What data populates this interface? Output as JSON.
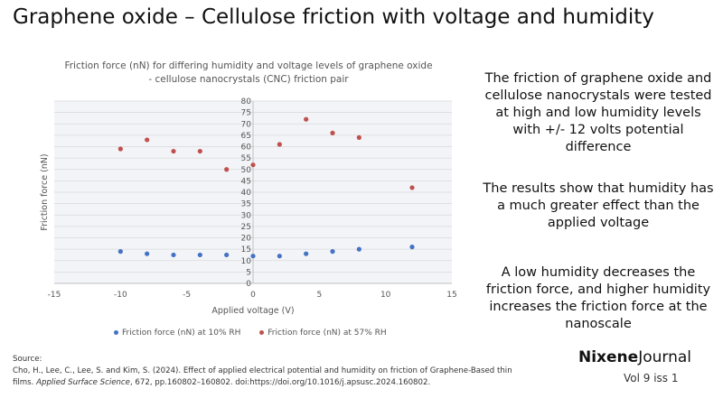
{
  "page": {
    "title": "Graphene oxide – Cellulose friction with voltage and humidity"
  },
  "side_text": [
    "The friction of graphene oxide and cellulose nanocrystals were tested at high and low humidity levels with +/- 12 volts potential difference",
    "The results show that humidity has a much greater effect than the applied voltage",
    "A low humidity decreases the friction force, and higher humidity increases the friction force at the nanoscale"
  ],
  "source": {
    "label": "Source:",
    "citation_plain": "Cho, H., Lee, C., Lee, S. and Kim, S. (2024). Effect of applied electrical potential and humidity on friction of Graphene-Based thin films.",
    "journal": "Applied Surface Science",
    "citation_tail": ", 672, pp.160802–160802. doi:https://doi.org/10.1016/j.apsusc.2024.160802."
  },
  "brand": {
    "name_bold": "Nixene",
    "name_regular": "Journal",
    "issue": "Vol 9  iss 1"
  },
  "colors": {
    "series_low": "#4472C4",
    "series_high": "#C0504D",
    "grid": "#d9d9d9",
    "plot_bg": "#f2f4f8"
  },
  "chart_data": {
    "type": "scatter",
    "title": "Friction force (nN) for differing humidity and voltage levels of graphene oxide - cellulose nanocrystals (CNC) friction pair",
    "xlabel": "Applied voltage (V)",
    "ylabel": "Friction force (nN)",
    "xlim": [
      -15,
      15
    ],
    "ylim": [
      0,
      80
    ],
    "x_ticks": [
      -15,
      -10,
      -5,
      0,
      5,
      10,
      15
    ],
    "y_ticks": [
      0,
      5,
      10,
      15,
      20,
      25,
      30,
      35,
      40,
      45,
      50,
      55,
      60,
      65,
      70,
      75,
      80
    ],
    "grid": true,
    "legend_position": "bottom",
    "series": [
      {
        "name": "Friction force (nN) at 10% RH",
        "color": "#4472C4",
        "x": [
          -10,
          -8,
          -6,
          -4,
          -2,
          0,
          2,
          4,
          6,
          8,
          12
        ],
        "y": [
          14,
          13,
          12.5,
          12.5,
          12.5,
          12,
          12,
          13,
          14,
          15,
          16
        ]
      },
      {
        "name": "Friction force (nN) at 57% RH",
        "color": "#C0504D",
        "x": [
          -10,
          -8,
          -6,
          -4,
          -2,
          0,
          2,
          4,
          6,
          8,
          12
        ],
        "y": [
          59,
          63,
          58,
          58,
          50,
          52,
          61,
          72,
          66,
          64,
          42
        ]
      }
    ]
  }
}
